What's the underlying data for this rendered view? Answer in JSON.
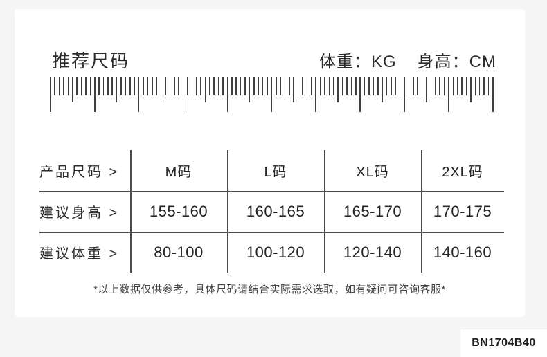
{
  "header": {
    "title": "推荐尺码",
    "weight_label": "体重：KG",
    "height_label": "身高：CM"
  },
  "chart_data": {
    "type": "table",
    "title": "推荐尺码",
    "units": {
      "weight": "KG",
      "height": "CM"
    },
    "rows": [
      {
        "label": "产品尺码 >",
        "cells": [
          "M码",
          "L码",
          "XL码",
          "2XL码"
        ]
      },
      {
        "label": "建议身高 >",
        "cells": [
          "155-160",
          "160-165",
          "165-170",
          "170-175"
        ]
      },
      {
        "label": "建议体重 >",
        "cells": [
          "80-100",
          "100-120",
          "120-140",
          "140-160"
        ]
      }
    ]
  },
  "footnote": "*以上数据仅供参考，具体尺码请结合实际需求选取，如有疑问可咨询客服*",
  "product_code": "BN1704B40",
  "colors": {
    "page_bg": "#f5f5f6",
    "card_bg": "#ffffff",
    "text": "#2b2b2b",
    "line": "#4c4c4c"
  }
}
